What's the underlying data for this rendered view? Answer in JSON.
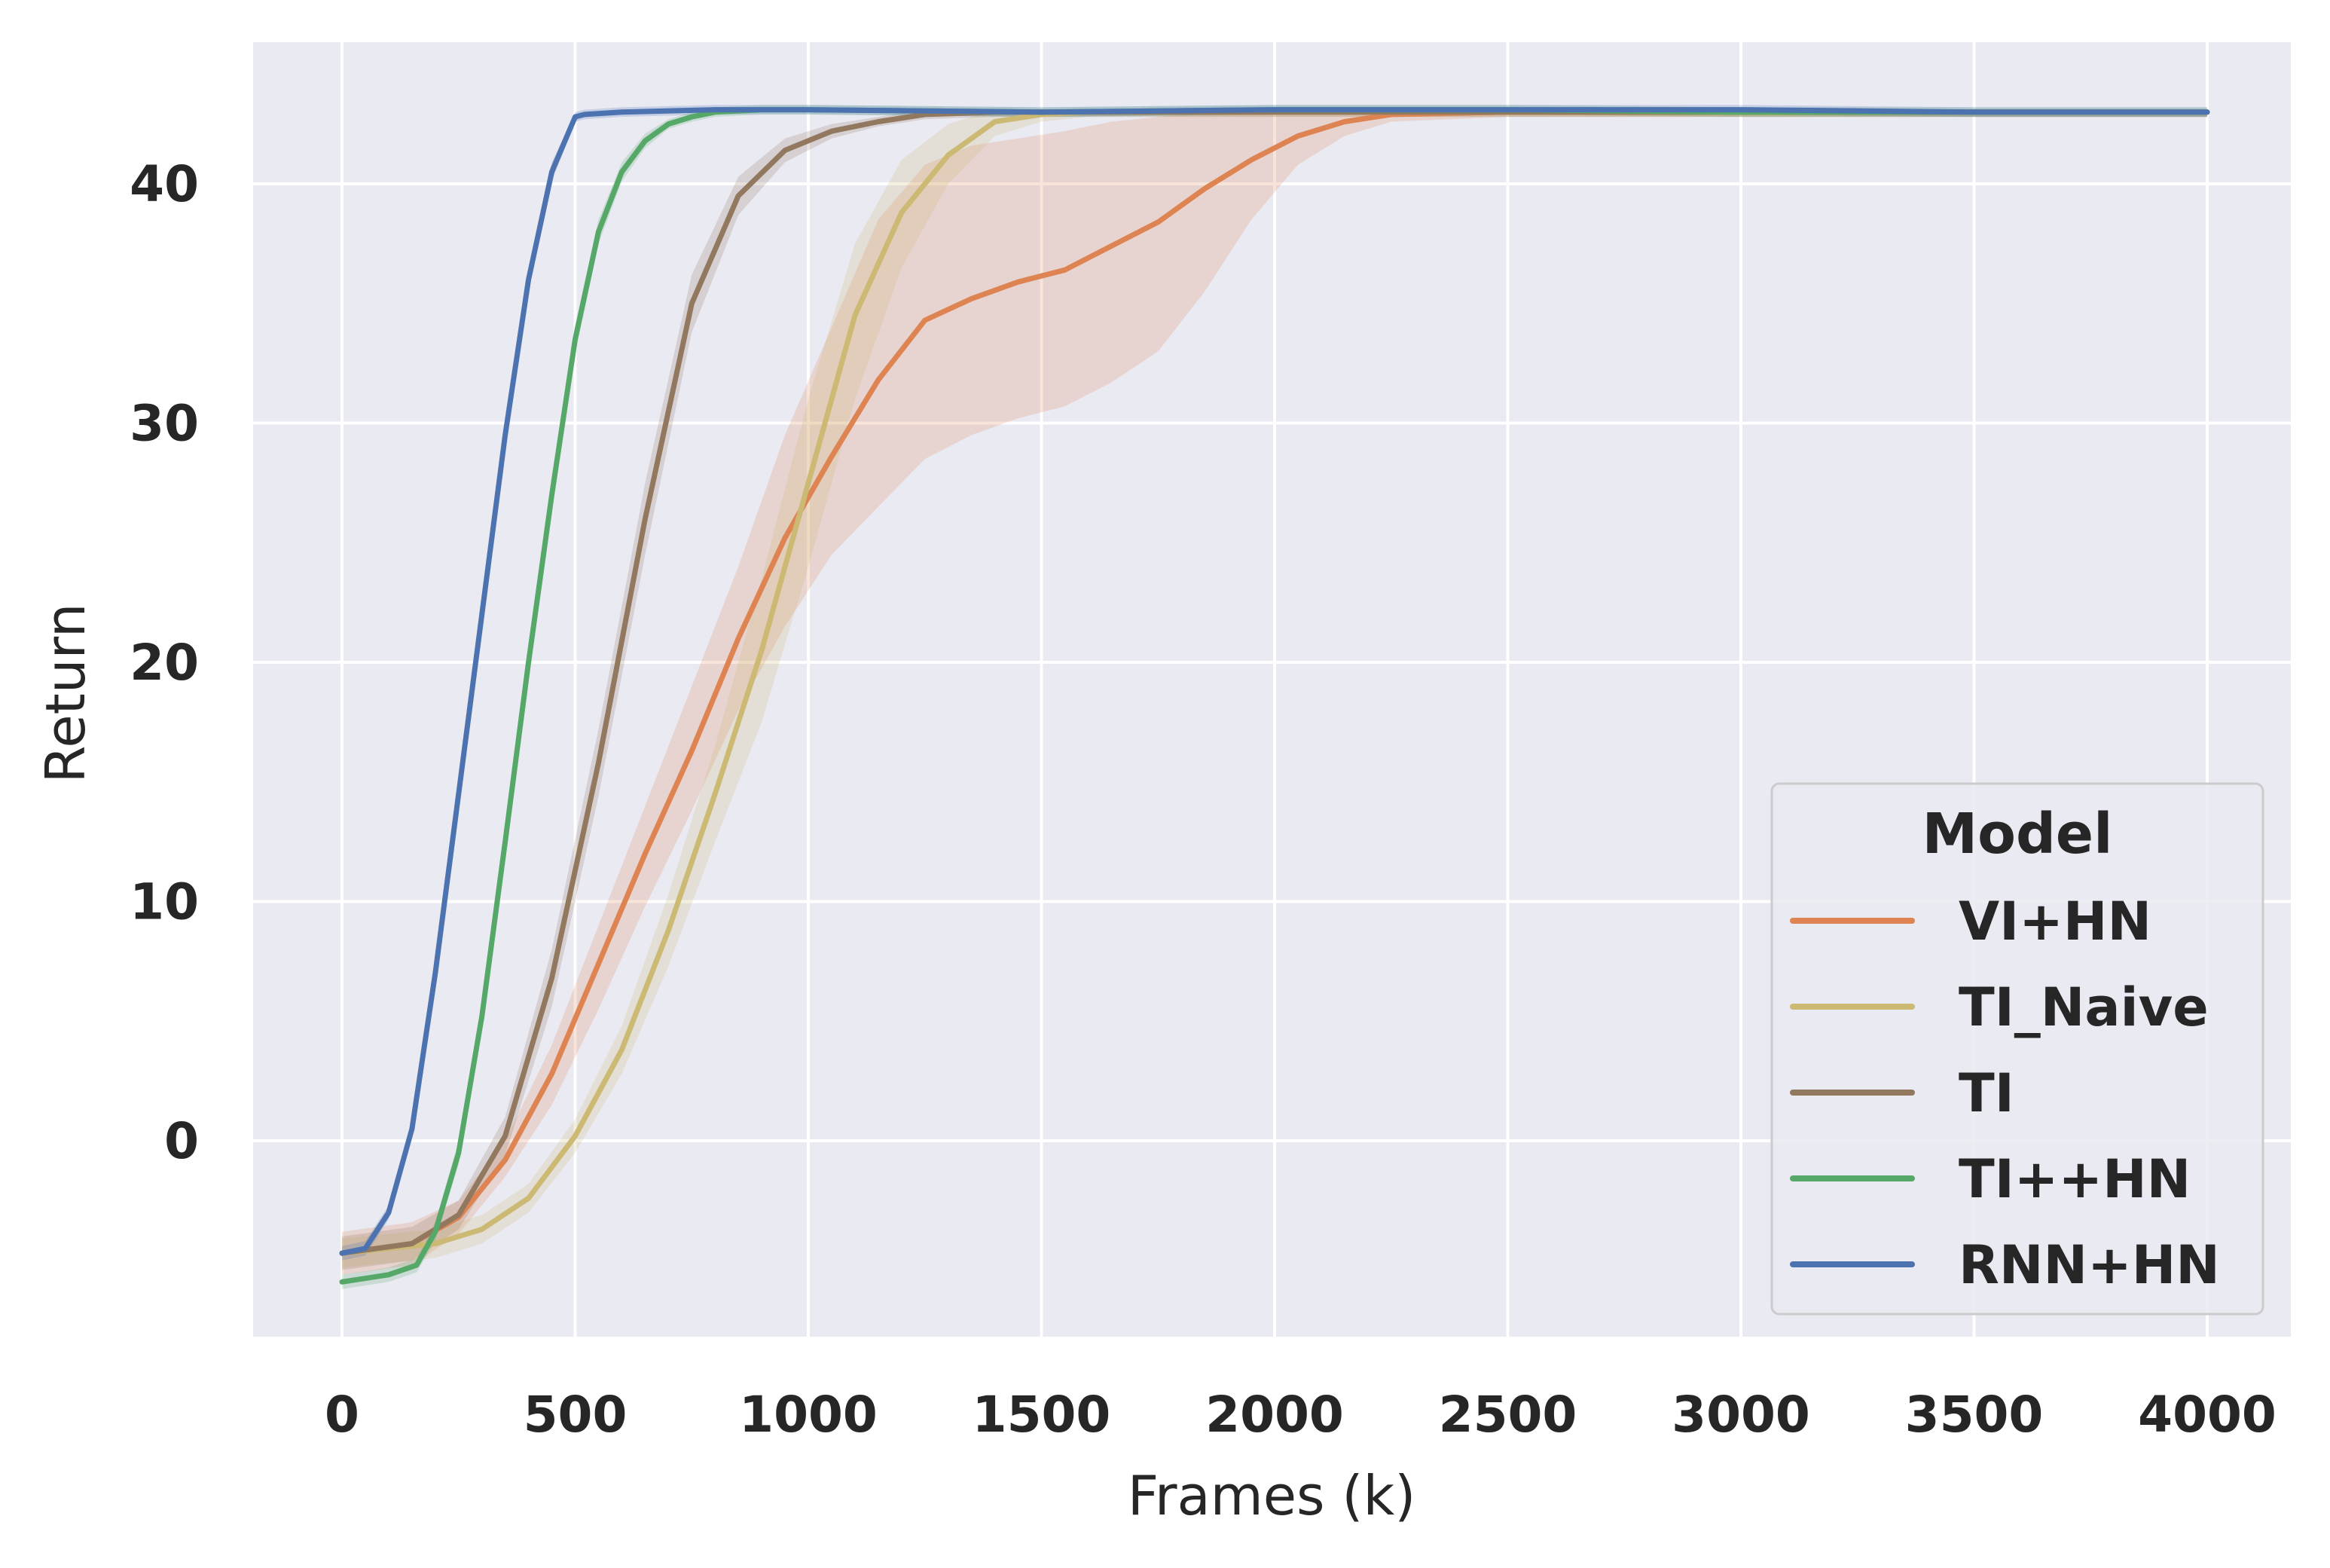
{
  "chart_data": {
    "type": "line",
    "title": "",
    "xlabel": "Frames (k)",
    "ylabel": "Return",
    "xlim": [
      -200,
      4180
    ],
    "ylim": [
      -8.5,
      46
    ],
    "xticks": [
      0,
      500,
      1000,
      1500,
      2000,
      2500,
      3000,
      3500,
      4000
    ],
    "yticks": [
      0,
      10,
      20,
      30,
      40
    ],
    "grid": true,
    "legend": {
      "title": "Model",
      "placement": "bottom-right"
    },
    "series": [
      {
        "name": "VI+HN",
        "color": "#dd8452",
        "x": [
          0,
          150,
          250,
          350,
          450,
          550,
          650,
          750,
          850,
          950,
          1050,
          1150,
          1250,
          1350,
          1450,
          1550,
          1650,
          1750,
          1850,
          1950,
          2050,
          2150,
          2250,
          2500,
          3000,
          3500,
          4000
        ],
        "y": [
          -4.7,
          -4.3,
          -3.2,
          -0.8,
          2.8,
          7.4,
          12.0,
          16.3,
          21.0,
          25.2,
          28.6,
          31.8,
          34.3,
          35.2,
          35.9,
          36.4,
          37.4,
          38.4,
          39.8,
          41.0,
          42.0,
          42.6,
          42.9,
          43.0,
          43.0,
          43.0,
          43.0
        ],
        "lower": [
          -5.6,
          -5.2,
          -3.9,
          -1.5,
          1.5,
          5.5,
          9.8,
          13.8,
          18.0,
          21.5,
          24.5,
          26.5,
          28.5,
          29.5,
          30.2,
          30.7,
          31.7,
          33.0,
          35.5,
          38.5,
          40.8,
          42.0,
          42.6,
          42.8,
          42.8,
          42.8,
          42.8
        ],
        "upper": [
          -3.8,
          -3.4,
          -2.5,
          0.0,
          4.0,
          9.0,
          14.0,
          19.0,
          24.0,
          29.5,
          34.0,
          38.5,
          40.8,
          41.6,
          41.9,
          42.2,
          42.6,
          42.8,
          43.0,
          43.0,
          43.1,
          43.1,
          43.1,
          43.1,
          43.1,
          43.1,
          43.1
        ]
      },
      {
        "name": "TI_Naive",
        "color": "#ccb974",
        "x": [
          0,
          200,
          300,
          400,
          500,
          600,
          700,
          800,
          900,
          1000,
          1100,
          1200,
          1300,
          1400,
          1500,
          1600,
          2000,
          2500,
          3000,
          3500,
          4000
        ],
        "y": [
          -4.7,
          -4.3,
          -3.7,
          -2.4,
          0.2,
          3.8,
          8.8,
          14.5,
          20.5,
          27.5,
          34.5,
          38.8,
          41.2,
          42.6,
          42.9,
          43.0,
          43.0,
          43.0,
          43.0,
          43.0,
          43.0
        ],
        "lower": [
          -5.3,
          -4.9,
          -4.3,
          -3.0,
          -0.5,
          2.8,
          7.3,
          12.5,
          17.5,
          24.0,
          31.0,
          36.5,
          40.0,
          42.0,
          42.6,
          42.8,
          42.8,
          42.8,
          42.8,
          42.8,
          42.8
        ],
        "upper": [
          -4.1,
          -3.7,
          -3.1,
          -1.8,
          0.9,
          4.8,
          10.3,
          16.5,
          23.5,
          31.0,
          37.5,
          41.0,
          42.5,
          43.1,
          43.1,
          43.1,
          43.1,
          43.1,
          43.1,
          43.1,
          43.1
        ]
      },
      {
        "name": "TI",
        "color": "#937860",
        "x": [
          0,
          150,
          250,
          350,
          450,
          550,
          650,
          750,
          850,
          950,
          1050,
          1150,
          1250,
          1400,
          1600,
          2000,
          2500,
          3000,
          3500,
          4000
        ],
        "y": [
          -4.7,
          -4.3,
          -3.1,
          0.2,
          6.8,
          15.8,
          26.0,
          35.0,
          39.5,
          41.4,
          42.2,
          42.6,
          42.9,
          43.0,
          43.0,
          43.0,
          43.0,
          43.0,
          43.0,
          43.0
        ],
        "lower": [
          -5.4,
          -5.0,
          -3.7,
          -0.6,
          5.6,
          14.4,
          24.5,
          33.8,
          38.7,
          40.9,
          41.9,
          42.4,
          42.7,
          42.8,
          42.8,
          42.8,
          42.8,
          42.8,
          42.8,
          42.8
        ],
        "upper": [
          -4.0,
          -3.6,
          -2.5,
          1.0,
          8.0,
          17.2,
          27.5,
          36.2,
          40.3,
          41.9,
          42.5,
          42.8,
          43.1,
          43.1,
          43.1,
          43.1,
          43.1,
          43.1,
          43.1,
          43.1
        ]
      },
      {
        "name": "TI++HN",
        "color": "#55a868",
        "x": [
          0,
          100,
          160,
          200,
          250,
          300,
          350,
          400,
          450,
          500,
          550,
          600,
          650,
          700,
          750,
          800,
          900,
          1000,
          1500,
          2000,
          2500,
          3000,
          3500,
          4000
        ],
        "y": [
          -5.9,
          -5.6,
          -5.2,
          -3.8,
          -0.5,
          5.2,
          12.5,
          20.0,
          27.0,
          33.5,
          38.0,
          40.5,
          41.8,
          42.5,
          42.8,
          43.0,
          43.1,
          43.1,
          43.0,
          43.1,
          43.1,
          43.0,
          43.0,
          43.0
        ],
        "lower": [
          -6.2,
          -5.9,
          -5.5,
          -4.2,
          -1.0,
          4.6,
          11.9,
          19.4,
          26.4,
          32.9,
          37.5,
          40.1,
          41.5,
          42.3,
          42.6,
          42.8,
          42.9,
          42.9,
          42.8,
          42.9,
          42.9,
          42.8,
          42.8,
          42.8
        ],
        "upper": [
          -5.6,
          -5.3,
          -4.9,
          -3.4,
          0.0,
          5.8,
          13.1,
          20.6,
          27.6,
          34.1,
          38.5,
          40.9,
          42.1,
          42.7,
          43.0,
          43.2,
          43.3,
          43.3,
          43.2,
          43.3,
          43.3,
          43.2,
          43.2,
          43.2
        ]
      },
      {
        "name": "RNN+HN",
        "color": "#4c72b0",
        "x": [
          0,
          50,
          100,
          150,
          200,
          250,
          300,
          350,
          400,
          450,
          500,
          520,
          600,
          800,
          1000,
          1500,
          2000,
          2500,
          3000,
          3500,
          4000
        ],
        "y": [
          -4.7,
          -4.5,
          -3.0,
          0.5,
          7.0,
          14.5,
          22.0,
          29.5,
          36.0,
          40.5,
          42.8,
          42.9,
          43.0,
          43.1,
          43.1,
          43.0,
          43.1,
          43.1,
          43.1,
          43.0,
          43.0
        ],
        "lower": [
          -5.0,
          -4.8,
          -3.3,
          0.1,
          6.5,
          14.0,
          21.5,
          29.0,
          35.5,
          40.1,
          42.6,
          42.7,
          42.8,
          42.9,
          42.9,
          42.8,
          42.9,
          42.9,
          42.9,
          42.8,
          42.8
        ],
        "upper": [
          -4.4,
          -4.2,
          -2.7,
          0.9,
          7.5,
          15.0,
          22.5,
          30.0,
          36.5,
          40.9,
          43.0,
          43.1,
          43.2,
          43.3,
          43.3,
          43.2,
          43.3,
          43.3,
          43.3,
          43.2,
          43.2
        ]
      }
    ]
  }
}
